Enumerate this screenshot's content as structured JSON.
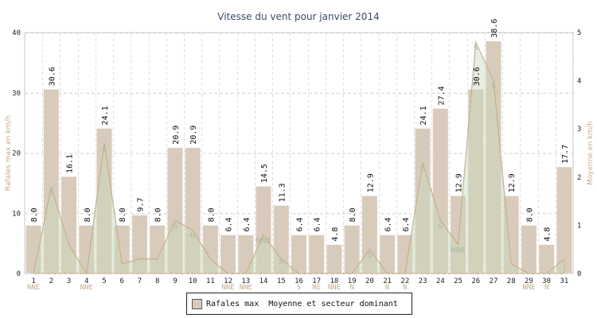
{
  "chart_data": {
    "type": "bar",
    "title": "Vitesse du vent pour janvier 2014",
    "ylabel_left": "Rafales max en km/h",
    "ylabel_right": "Moyenne en km/h",
    "ylim_left": [
      0,
      40
    ],
    "ylim_right": [
      0,
      5
    ],
    "yticks_left": [
      "0",
      "10",
      "20",
      "30",
      "40"
    ],
    "yticks_right": [
      "0",
      "1",
      "2",
      "3",
      "4",
      "5"
    ],
    "grid": true,
    "legend_position": "bottom",
    "categories": [
      "1",
      "2",
      "3",
      "4",
      "5",
      "6",
      "7",
      "8",
      "9",
      "10",
      "11",
      "12",
      "13",
      "14",
      "15",
      "16",
      "17",
      "18",
      "19",
      "20",
      "21",
      "22",
      "23",
      "24",
      "25",
      "26",
      "27",
      "28",
      "29",
      "30",
      "31"
    ],
    "series": [
      {
        "name": "Rafales max",
        "type": "bar",
        "color": "#d9cbbb",
        "values": [
          8.0,
          30.6,
          16.1,
          8.0,
          24.1,
          8.0,
          9.7,
          8.0,
          20.9,
          20.9,
          8.0,
          6.4,
          6.4,
          14.5,
          11.3,
          6.4,
          6.4,
          4.8,
          8.0,
          12.9,
          6.4,
          6.4,
          24.1,
          27.4,
          12.9,
          30.6,
          38.6,
          12.9,
          8.0,
          4.8,
          17.7
        ],
        "labels": [
          "8.0",
          "30.6",
          "16.1",
          "8.0",
          "24.1",
          "8.0",
          "9.7",
          "8.0",
          "20.9",
          "20.9",
          "8.0",
          "6.4",
          "6.4",
          "14.5",
          "11.3",
          "6.4",
          "6.4",
          "4.8",
          "8.0",
          "12.9",
          "6.4",
          "6.4",
          "24.1",
          "27.4",
          "12.9",
          "30.6",
          "38.6",
          "12.9",
          "8.0",
          "4.8",
          "17.7"
        ]
      },
      {
        "name": "Moyenne et secteur dominant",
        "type": "area",
        "color": "#c9d9bf",
        "values": [
          0.0,
          1.8,
          0.6,
          0.0,
          2.7,
          0.2,
          0.3,
          0.3,
          1.1,
          0.9,
          0.3,
          0.0,
          0.0,
          0.8,
          0.3,
          0.0,
          0.0,
          0.0,
          0.0,
          0.5,
          0.0,
          0.0,
          2.3,
          1.1,
          0.6,
          4.8,
          4.0,
          0.2,
          0.0,
          0.0,
          0.3
        ]
      }
    ],
    "direction_labels_below": [
      "NNE",
      "",
      "",
      "NNE",
      "",
      "",
      "",
      "",
      "",
      "",
      "",
      "NNE",
      "NNE",
      "",
      "",
      "S",
      "NE",
      "NNE",
      "N",
      "",
      "N",
      "N",
      "",
      "",
      "",
      "",
      "",
      "",
      "NNE",
      "N",
      ""
    ],
    "direction_labels_inside": [
      "",
      "S",
      "",
      "",
      "S",
      "",
      "",
      "",
      "S",
      "N",
      "",
      "",
      "",
      "NNE",
      "S",
      "",
      "",
      "",
      "",
      "S",
      "",
      "",
      "S",
      "S",
      "NNE",
      "S",
      "S",
      "",
      "",
      "",
      ""
    ]
  },
  "legend": {
    "item1": "Rafales max",
    "item2": "Moyenne et secteur dominant"
  }
}
